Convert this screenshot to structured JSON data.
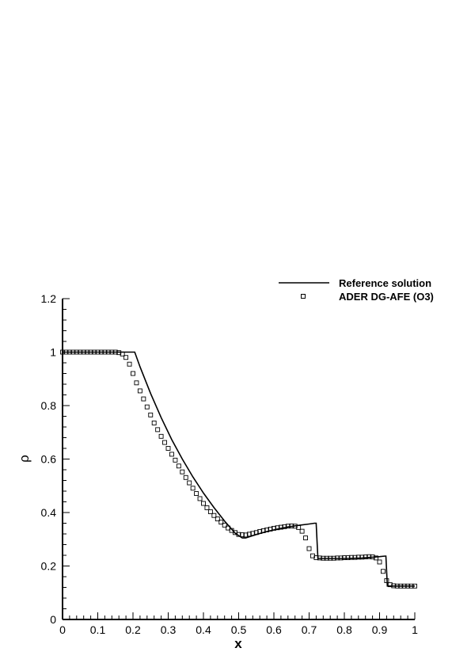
{
  "chart_data": {
    "type": "line",
    "xlabel": "x",
    "ylabel": "ρ",
    "xlim": [
      0,
      1
    ],
    "ylim": [
      0,
      1.2
    ],
    "xticks": [
      "0",
      "0.1",
      "0.2",
      "0.3",
      "0.4",
      "0.5",
      "0.6",
      "0.7",
      "0.8",
      "0.9",
      "1"
    ],
    "yticks": [
      "0",
      "0.2",
      "0.4",
      "0.6",
      "0.8",
      "1",
      "1.2"
    ],
    "grid": false,
    "legend_position": "top-right",
    "series": [
      {
        "name": "Reference solution",
        "style": "line",
        "color": "#000000",
        "x": [
          0,
          0.19,
          0.205,
          0.22,
          0.25,
          0.28,
          0.31,
          0.34,
          0.37,
          0.4,
          0.43,
          0.46,
          0.49,
          0.51,
          0.52,
          0.55,
          0.58,
          0.61,
          0.64,
          0.67,
          0.7,
          0.715,
          0.72,
          0.725,
          0.8,
          0.85,
          0.9,
          0.915,
          0.918,
          0.922,
          1.0
        ],
        "y": [
          1.0,
          1.0,
          1.0,
          0.945,
          0.845,
          0.755,
          0.673,
          0.6,
          0.533,
          0.473,
          0.418,
          0.368,
          0.323,
          0.305,
          0.305,
          0.318,
          0.329,
          0.338,
          0.346,
          0.352,
          0.357,
          0.36,
          0.36,
          0.228,
          0.228,
          0.23,
          0.235,
          0.237,
          0.237,
          0.125,
          0.125
        ]
      },
      {
        "name": "ADER DG-AFE (O3)",
        "style": "markers",
        "marker": "square",
        "color": "#000000",
        "x": [
          0,
          0.01,
          0.02,
          0.03,
          0.04,
          0.05,
          0.06,
          0.07,
          0.08,
          0.09,
          0.1,
          0.11,
          0.12,
          0.13,
          0.14,
          0.15,
          0.16,
          0.17,
          0.18,
          0.19,
          0.2,
          0.21,
          0.22,
          0.23,
          0.24,
          0.25,
          0.26,
          0.27,
          0.28,
          0.29,
          0.3,
          0.31,
          0.32,
          0.33,
          0.34,
          0.35,
          0.36,
          0.37,
          0.38,
          0.39,
          0.4,
          0.41,
          0.42,
          0.43,
          0.44,
          0.45,
          0.46,
          0.47,
          0.48,
          0.49,
          0.5,
          0.51,
          0.52,
          0.53,
          0.54,
          0.55,
          0.56,
          0.57,
          0.58,
          0.59,
          0.6,
          0.61,
          0.62,
          0.63,
          0.64,
          0.65,
          0.66,
          0.67,
          0.68,
          0.69,
          0.7,
          0.71,
          0.72,
          0.73,
          0.74,
          0.75,
          0.76,
          0.77,
          0.78,
          0.79,
          0.8,
          0.81,
          0.82,
          0.83,
          0.84,
          0.85,
          0.86,
          0.87,
          0.88,
          0.89,
          0.9,
          0.91,
          0.92,
          0.93,
          0.94,
          0.95,
          0.96,
          0.97,
          0.98,
          0.99,
          1.0
        ],
        "y": [
          1.0,
          1.0,
          1.0,
          1.0,
          1.0,
          1.0,
          1.0,
          1.0,
          1.0,
          1.0,
          1.0,
          1.0,
          1.0,
          1.0,
          1.0,
          1.0,
          0.998,
          0.993,
          0.98,
          0.955,
          0.92,
          0.885,
          0.855,
          0.825,
          0.795,
          0.765,
          0.735,
          0.71,
          0.685,
          0.662,
          0.64,
          0.618,
          0.596,
          0.574,
          0.552,
          0.531,
          0.511,
          0.491,
          0.471,
          0.452,
          0.434,
          0.418,
          0.403,
          0.389,
          0.376,
          0.364,
          0.353,
          0.342,
          0.333,
          0.325,
          0.318,
          0.317,
          0.316,
          0.319,
          0.322,
          0.325,
          0.329,
          0.332,
          0.335,
          0.338,
          0.341,
          0.343,
          0.345,
          0.347,
          0.349,
          0.35,
          0.349,
          0.344,
          0.33,
          0.305,
          0.265,
          0.238,
          0.231,
          0.23,
          0.229,
          0.229,
          0.229,
          0.229,
          0.23,
          0.23,
          0.231,
          0.231,
          0.232,
          0.232,
          0.233,
          0.233,
          0.234,
          0.235,
          0.234,
          0.23,
          0.215,
          0.18,
          0.145,
          0.13,
          0.126,
          0.125,
          0.125,
          0.125,
          0.125,
          0.125,
          0.125
        ]
      }
    ]
  }
}
